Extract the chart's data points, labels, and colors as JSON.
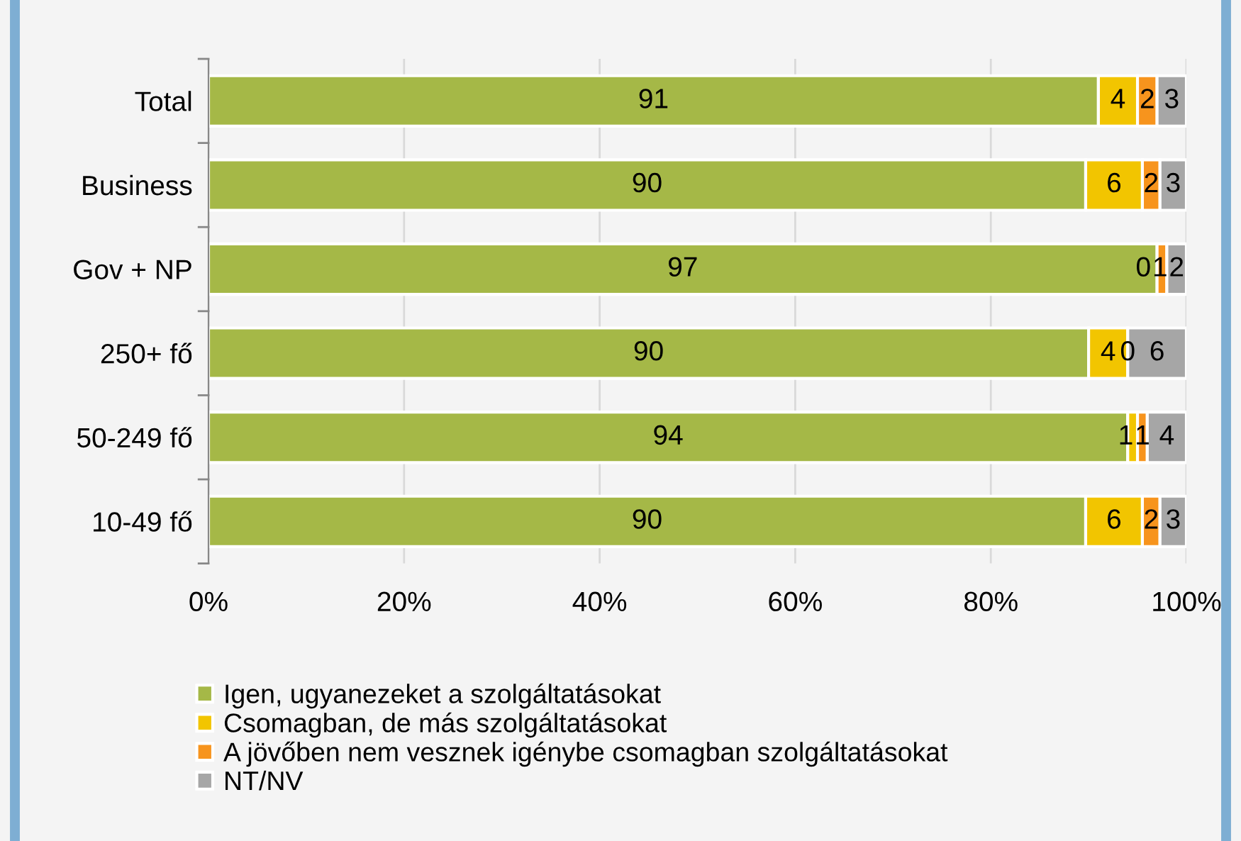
{
  "chart_data": {
    "type": "bar",
    "orientation": "horizontal",
    "stacked": true,
    "categories": [
      "Total",
      "Business",
      "Gov + NP",
      "250+ fő",
      "50-249 fő",
      "10-49 fő"
    ],
    "series": [
      {
        "name": "Igen, ugyanezeket a szolgáltatásokat",
        "color": "#a5b847",
        "values": [
          91,
          89.7,
          97,
          90,
          94,
          89.7
        ],
        "value_labels": [
          "91",
          "90",
          "97",
          "90",
          "94",
          "90"
        ]
      },
      {
        "name": "Csomagban, de más szolgáltatásokat",
        "color": "#f2c500",
        "values": [
          4,
          5.8,
          0,
          4,
          1,
          5.8
        ],
        "value_labels": [
          "4",
          "6",
          "0",
          "4",
          "1",
          "6"
        ]
      },
      {
        "name": "A jövőben nem vesznek igénybe csomagban szolgáltatásokat",
        "color": "#f7941d",
        "values": [
          2,
          1.8,
          1,
          0,
          1,
          1.8
        ],
        "value_labels": [
          "2",
          "2",
          "1",
          "0",
          "1",
          "2"
        ]
      },
      {
        "name": "NT/NV",
        "color": "#a6a6a6",
        "values": [
          3,
          2.7,
          2,
          6,
          4,
          2.7
        ],
        "value_labels": [
          "3",
          "3",
          "2",
          "6",
          "4",
          "3"
        ]
      }
    ],
    "xlim": [
      0,
      100
    ],
    "xticks": [
      {
        "value": 0,
        "label": "0%"
      },
      {
        "value": 20,
        "label": "20%"
      },
      {
        "value": 40,
        "label": "40%"
      },
      {
        "value": 60,
        "label": "60%"
      },
      {
        "value": 80,
        "label": "80%"
      },
      {
        "value": 100,
        "label": "100%"
      }
    ],
    "grid": "x",
    "legend": "bottom"
  }
}
